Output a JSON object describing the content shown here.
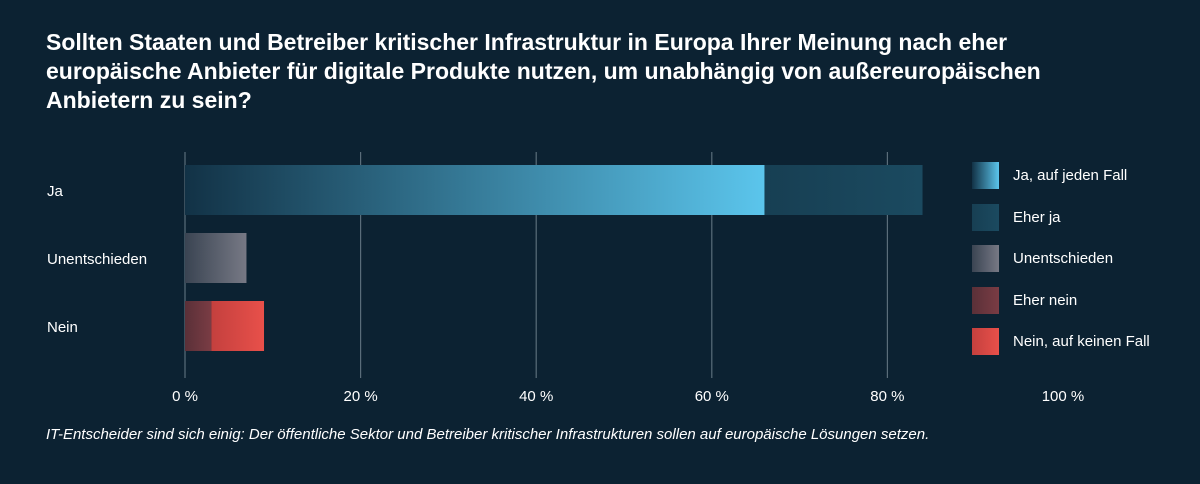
{
  "title": "Sollten Staaten und Betreiber kritischer Infrastruktur in Europa Ihrer Meinung nach eher europäische Anbieter für digitale Produkte nutzen, um unabhängig von außereuropäischen Anbietern zu sein?",
  "caption": "IT-Entscheider sind sich einig: Der öffentliche Sektor und Betreiber kritischer Infrastrukturen sollen auf europäische Lösungen setzen.",
  "colors": {
    "background": "#0c2232",
    "ja_auf_jeden_fall": "#5bc5ec",
    "eher_ja": "#1b4a60",
    "unentschieden": "#777985",
    "eher_nein": "#7a3c44",
    "nein_auf_keinen_fall": "#e8504a",
    "gridline": "#5a6d7a"
  },
  "chart_data": {
    "type": "bar",
    "orientation": "horizontal",
    "stacked": true,
    "categories": [
      "Ja",
      "Unentschieden",
      "Nein"
    ],
    "series": [
      {
        "name": "Ja, auf jeden Fall",
        "values": [
          66,
          0,
          0
        ]
      },
      {
        "name": "Eher ja",
        "values": [
          18,
          0,
          0
        ]
      },
      {
        "name": "Unentschieden",
        "values": [
          0,
          7,
          0
        ]
      },
      {
        "name": "Eher nein",
        "values": [
          0,
          0,
          3
        ]
      },
      {
        "name": "Nein, auf keinen Fall",
        "values": [
          0,
          0,
          6
        ]
      }
    ],
    "xlim": [
      0,
      100
    ],
    "xticks": [
      "0 %",
      "20 %",
      "40 %",
      "60 %",
      "80 %",
      "100 %"
    ],
    "grid": true,
    "legend_position": "right"
  }
}
